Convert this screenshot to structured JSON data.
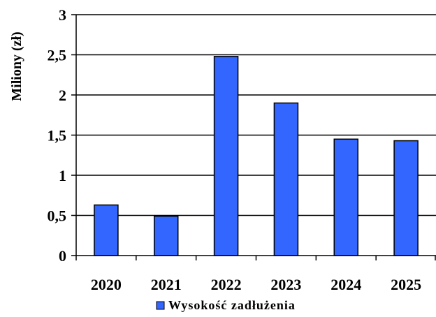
{
  "chart_data": {
    "type": "bar",
    "categories": [
      "2020",
      "2021",
      "2022",
      "2023",
      "2024",
      "2025"
    ],
    "series": [
      {
        "name": "Wysokość zadłużenia",
        "values": [
          0.63,
          0.49,
          2.48,
          1.9,
          1.45,
          1.43
        ]
      }
    ],
    "title": "",
    "xlabel": "",
    "ylabel": "Miliony (zł)",
    "ylim": [
      0,
      3
    ],
    "yticks": [
      0,
      0.5,
      1,
      1.5,
      2,
      2.5,
      3
    ],
    "ytick_labels": [
      "0",
      "0,5",
      "1",
      "1,5",
      "2",
      "2,5",
      "3"
    ],
    "grid": true,
    "legend": "bottom",
    "colors": {
      "bar": "#3366ff",
      "bar_stroke": "#000000",
      "grid": "#000000"
    }
  }
}
